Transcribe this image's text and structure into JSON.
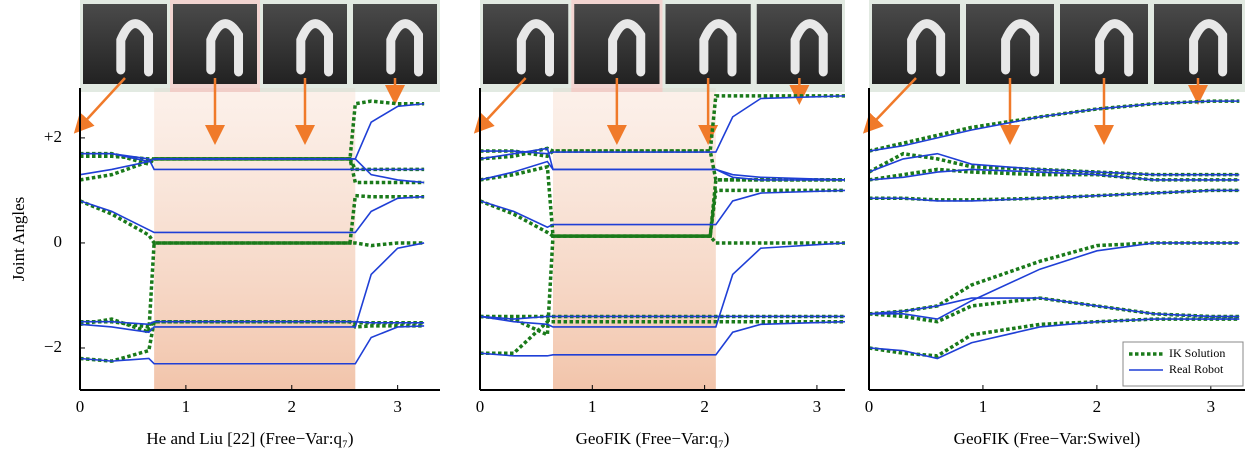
{
  "chart_data": [
    {
      "type": "line",
      "title": "He and Liu [22] (Free−Var:q₇)",
      "ylabel": "Joint Angles",
      "xlim": [
        0,
        3.4
      ],
      "ylim": [
        -2.8,
        2.95
      ],
      "xticks": [
        0,
        1,
        2,
        3
      ],
      "yticks": [
        {
          "value": 2,
          "label": "+2"
        },
        0,
        {
          "value": -2,
          "label": "−2"
        }
      ],
      "highlight": [
        0.7,
        2.6
      ],
      "x": [
        0,
        0.3,
        0.65,
        0.7,
        1.5,
        2.55,
        2.6,
        2.75,
        3.0,
        3.25
      ],
      "series": [
        {
          "color": "#1a7a1a",
          "style": "dotted",
          "values": [
            [
              1.7,
              1.7,
              1.5,
              1.6,
              1.6,
              1.6,
              2.65,
              2.7,
              2.65,
              2.65
            ],
            [
              1.65,
              1.65,
              1.6,
              1.6,
              1.6,
              1.6,
              1.4,
              1.4,
              1.4,
              1.4
            ],
            [
              1.2,
              1.3,
              1.55,
              1.6,
              1.6,
              1.6,
              1.15,
              1.15,
              1.15,
              1.15
            ],
            [
              0.8,
              0.55,
              0.15,
              0,
              0,
              0,
              0.9,
              0.88,
              0.88,
              0.88
            ],
            [
              -1.55,
              -1.45,
              -1.7,
              0,
              0,
              0,
              0,
              -0.05,
              0,
              0
            ],
            [
              -1.5,
              -1.5,
              -1.6,
              -1.5,
              -1.5,
              -1.5,
              -1.52,
              -1.52,
              -1.52,
              -1.52
            ],
            [
              -2.2,
              -2.25,
              -2.05,
              -1.5,
              -1.5,
              -1.5,
              -1.6,
              -1.58,
              -1.58,
              -1.58
            ]
          ]
        },
        {
          "color": "#1f3fd6",
          "style": "solid",
          "values": [
            [
              1.7,
              1.7,
              1.55,
              1.6,
              1.6,
              1.6,
              1.6,
              2.3,
              2.6,
              2.65
            ],
            [
              1.7,
              1.7,
              1.6,
              1.4,
              1.4,
              1.4,
              1.4,
              1.4,
              1.4,
              1.4
            ],
            [
              1.3,
              1.4,
              1.55,
              1.6,
              1.6,
              1.6,
              1.6,
              1.3,
              1.2,
              1.15
            ],
            [
              0.8,
              0.6,
              0.25,
              0.2,
              0.2,
              0.2,
              0.2,
              0.6,
              0.85,
              0.88
            ],
            [
              -1.55,
              -1.6,
              -1.7,
              -1.6,
              -1.6,
              -1.6,
              -1.6,
              -0.6,
              -0.1,
              0
            ],
            [
              -1.5,
              -1.5,
              -1.55,
              -1.5,
              -1.5,
              -1.5,
              -1.5,
              -1.52,
              -1.52,
              -1.52
            ],
            [
              -2.2,
              -2.25,
              -2.2,
              -2.3,
              -2.3,
              -2.3,
              -2.3,
              -1.8,
              -1.6,
              -1.58
            ]
          ]
        }
      ]
    },
    {
      "type": "line",
      "title": "GeoFIK (Free−Var:q₇)",
      "xlim": [
        0,
        3.25
      ],
      "ylim": [
        -2.8,
        2.95
      ],
      "xticks": [
        0,
        1,
        2,
        3
      ],
      "highlight": [
        0.65,
        2.1
      ],
      "x": [
        0,
        0.3,
        0.6,
        0.65,
        1.4,
        2.05,
        2.1,
        2.25,
        2.5,
        3.25
      ],
      "series": [
        {
          "color": "#1a7a1a",
          "style": "dotted",
          "values": [
            [
              1.75,
              1.75,
              1.65,
              1.75,
              1.75,
              1.75,
              2.8,
              2.8,
              2.8,
              2.8
            ],
            [
              1.6,
              1.65,
              1.8,
              1.75,
              1.75,
              1.75,
              1.2,
              1.2,
              1.2,
              1.2
            ],
            [
              1.2,
              1.3,
              1.45,
              0.13,
              0.13,
              0.13,
              1.2,
              1.2,
              1.2,
              1.2
            ],
            [
              0.8,
              0.55,
              0.2,
              0.13,
              0.13,
              0.13,
              1.0,
              1.0,
              1.0,
              1.0
            ],
            [
              -1.4,
              -1.45,
              -1.75,
              0.13,
              0.13,
              0.13,
              0,
              0,
              0,
              0
            ],
            [
              -1.4,
              -1.4,
              -1.4,
              -1.4,
              -1.4,
              -1.4,
              -1.4,
              -1.4,
              -1.4,
              -1.4
            ],
            [
              -2.1,
              -2.1,
              -1.5,
              -1.5,
              -1.5,
              -1.5,
              -1.5,
              -1.5,
              -1.5,
              -1.5
            ]
          ]
        },
        {
          "color": "#1f3fd6",
          "style": "solid",
          "values": [
            [
              1.75,
              1.75,
              1.7,
              1.73,
              1.73,
              1.73,
              1.73,
              2.4,
              2.75,
              2.8
            ],
            [
              1.6,
              1.7,
              1.8,
              1.4,
              1.4,
              1.4,
              1.4,
              1.3,
              1.25,
              1.2
            ],
            [
              1.2,
              1.35,
              1.55,
              1.4,
              1.4,
              1.4,
              1.4,
              1.25,
              1.2,
              1.2
            ],
            [
              0.8,
              0.6,
              0.3,
              0.35,
              0.35,
              0.35,
              0.35,
              0.8,
              0.95,
              1.0
            ],
            [
              -1.4,
              -1.5,
              -1.55,
              -1.6,
              -1.6,
              -1.6,
              -1.6,
              -0.6,
              -0.1,
              0
            ],
            [
              -1.4,
              -1.45,
              -1.4,
              -1.4,
              -1.4,
              -1.4,
              -1.4,
              -1.4,
              -1.4,
              -1.4
            ],
            [
              -2.1,
              -2.15,
              -2.15,
              -2.13,
              -2.13,
              -2.13,
              -2.13,
              -1.7,
              -1.55,
              -1.5
            ]
          ]
        }
      ]
    },
    {
      "type": "line",
      "title": "GeoFIK (Free−Var:Swivel)",
      "xlim": [
        0,
        3.3
      ],
      "ylim": [
        -2.8,
        2.95
      ],
      "xticks": [
        0,
        1,
        2,
        3
      ],
      "legend": "lower right",
      "x": [
        0,
        0.3,
        0.6,
        0.9,
        1.5,
        2.0,
        2.5,
        3.0,
        3.25
      ],
      "series": [
        {
          "name": "IK Solution",
          "color": "#1a7a1a",
          "style": "dotted",
          "values": [
            [
              1.75,
              1.9,
              2.05,
              2.2,
              2.4,
              2.55,
              2.65,
              2.7,
              2.7
            ],
            [
              1.35,
              1.7,
              1.6,
              1.45,
              1.4,
              1.35,
              1.3,
              1.3,
              1.3
            ],
            [
              1.2,
              1.3,
              1.4,
              1.35,
              1.3,
              1.3,
              1.2,
              1.2,
              1.2
            ],
            [
              0.85,
              0.85,
              0.82,
              0.82,
              0.85,
              0.9,
              0.95,
              1.0,
              1.0
            ],
            [
              -1.35,
              -1.3,
              -1.2,
              -0.8,
              -0.35,
              -0.05,
              0,
              0,
              0
            ],
            [
              -1.35,
              -1.4,
              -1.5,
              -1.2,
              -1.05,
              -1.2,
              -1.35,
              -1.4,
              -1.4
            ],
            [
              -2.0,
              -2.1,
              -2.15,
              -1.75,
              -1.55,
              -1.5,
              -1.45,
              -1.45,
              -1.45
            ]
          ]
        },
        {
          "name": "Real Robot",
          "color": "#1f3fd6",
          "style": "solid",
          "values": [
            [
              1.75,
              1.85,
              2.0,
              2.15,
              2.4,
              2.55,
              2.65,
              2.7,
              2.7
            ],
            [
              1.35,
              1.6,
              1.7,
              1.5,
              1.4,
              1.35,
              1.3,
              1.3,
              1.3
            ],
            [
              1.2,
              1.25,
              1.35,
              1.4,
              1.35,
              1.3,
              1.2,
              1.2,
              1.2
            ],
            [
              0.85,
              0.85,
              0.8,
              0.8,
              0.85,
              0.9,
              0.95,
              1.0,
              1.0
            ],
            [
              -1.35,
              -1.35,
              -1.45,
              -1.1,
              -0.5,
              -0.15,
              0,
              0,
              0
            ],
            [
              -1.35,
              -1.3,
              -1.2,
              -1.05,
              -1.05,
              -1.2,
              -1.35,
              -1.4,
              -1.4
            ],
            [
              -2.0,
              -2.05,
              -2.2,
              -1.9,
              -1.6,
              -1.5,
              -1.45,
              -1.45,
              -1.45
            ]
          ]
        }
      ]
    }
  ]
}
